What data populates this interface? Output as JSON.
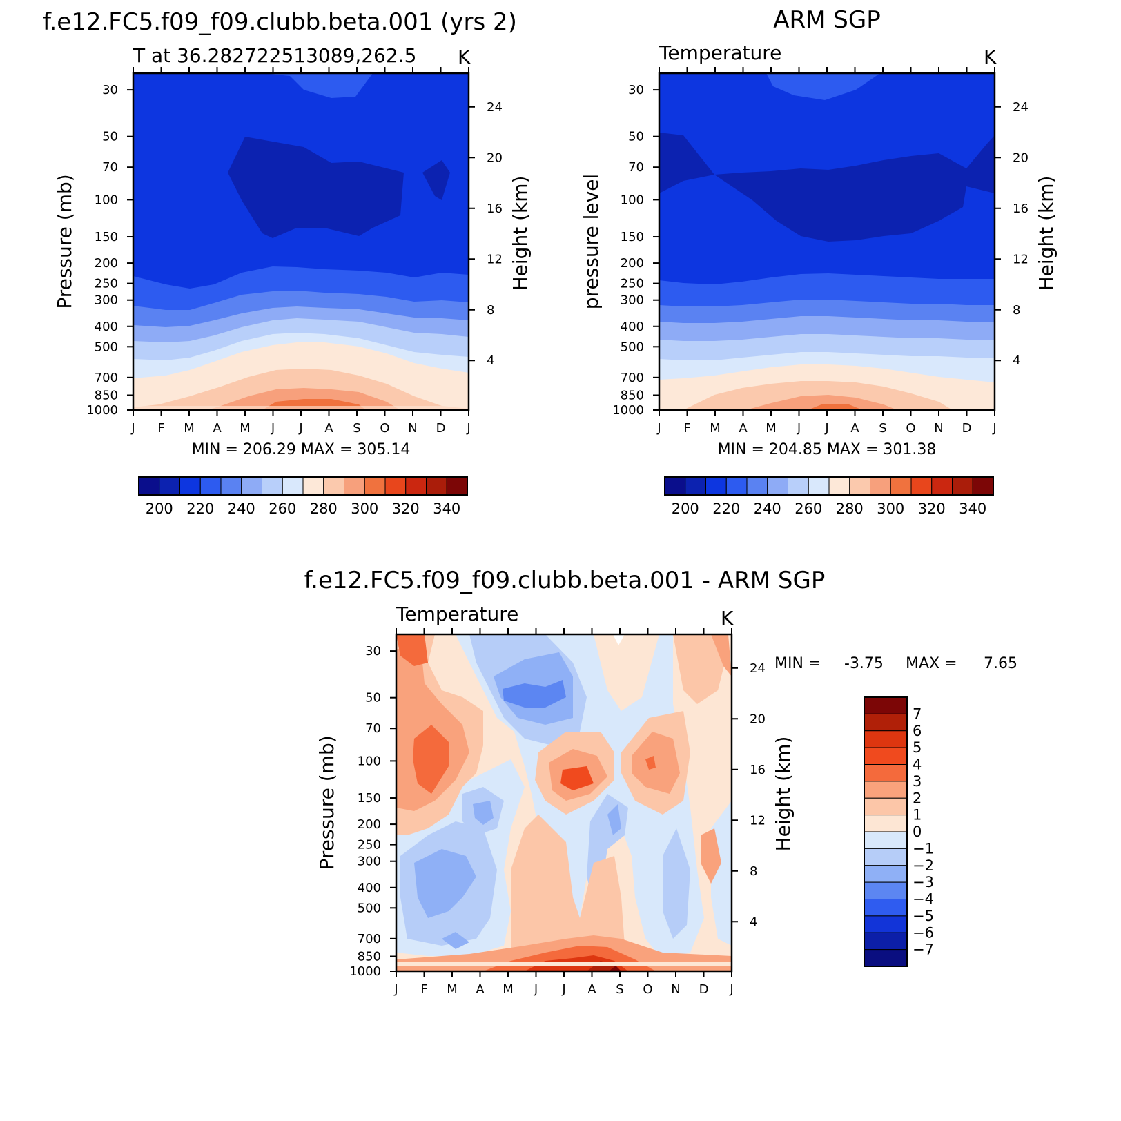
{
  "chart_data": [
    {
      "id": "model",
      "type": "contour",
      "title": "f.e12.FC5.f09_f09.clubb.beta.001 (yrs 2)",
      "left_label": "T at 36.282722513089,262.5",
      "units": "K",
      "ylabel": "Pressure (mb)",
      "right_label": "Height (km)",
      "minmax": "MIN = 206.29 MAX = 305.14",
      "months": [
        "J",
        "F",
        "M",
        "A",
        "M",
        "J",
        "J",
        "A",
        "S",
        "O",
        "N",
        "D",
        "J"
      ],
      "pressure_ticks": [
        "30",
        "50",
        "70",
        "100",
        "150",
        "200",
        "250",
        "300",
        "400",
        "500",
        "700",
        "850",
        "1000"
      ],
      "height_ticks": [
        "24",
        "20",
        "16",
        "12",
        "8",
        "4"
      ],
      "colorbar_labels": [
        "200",
        "220",
        "240",
        "260",
        "280",
        "300",
        "320",
        "340"
      ]
    },
    {
      "id": "obs",
      "type": "contour",
      "title": "ARM SGP",
      "left_label": "Temperature",
      "units": "K",
      "ylabel": "pressure level",
      "right_label": "Height (km)",
      "minmax": "MIN = 204.85 MAX = 301.38",
      "months": [
        "J",
        "F",
        "M",
        "A",
        "M",
        "J",
        "J",
        "A",
        "S",
        "O",
        "N",
        "D",
        "J"
      ],
      "pressure_ticks": [
        "30",
        "50",
        "70",
        "100",
        "150",
        "200",
        "250",
        "300",
        "400",
        "500",
        "700",
        "850",
        "1000"
      ],
      "height_ticks": [
        "24",
        "20",
        "16",
        "12",
        "8",
        "4"
      ],
      "colorbar_labels": [
        "200",
        "220",
        "240",
        "260",
        "280",
        "300",
        "320",
        "340"
      ]
    },
    {
      "id": "diff",
      "type": "contour",
      "title": "f.e12.FC5.f09_f09.clubb.beta.001 - ARM SGP",
      "left_label": "Temperature",
      "units": "K",
      "ylabel": "Pressure (mb)",
      "right_label": "Height (km)",
      "min_label": "MIN =",
      "min_value": "-3.75",
      "max_label": "MAX =",
      "max_value": "7.65",
      "months": [
        "J",
        "F",
        "M",
        "A",
        "M",
        "J",
        "J",
        "A",
        "S",
        "O",
        "N",
        "D",
        "J"
      ],
      "pressure_ticks": [
        "30",
        "50",
        "70",
        "100",
        "150",
        "200",
        "250",
        "300",
        "400",
        "500",
        "700",
        "850",
        "1000"
      ],
      "height_ticks": [
        "24",
        "20",
        "16",
        "12",
        "8",
        "4"
      ],
      "colorbar_labels": [
        "7",
        "6",
        "5",
        "4",
        "3",
        "2",
        "1",
        "0",
        "−1",
        "−2",
        "−3",
        "−4",
        "−5",
        "−6",
        "−7"
      ]
    }
  ],
  "colors": {
    "temp_scale": [
      "#0a0e8c",
      "#0c22b0",
      "#0d36e0",
      "#2d5bf0",
      "#5a82f2",
      "#8eabf6",
      "#b8cffa",
      "#d9e8fc",
      "#fde8d8",
      "#fbc9ad",
      "#f7a07c",
      "#f0723e",
      "#e8461c",
      "#cb2710",
      "#aa1d0a",
      "#7c0606"
    ],
    "diff_scale": [
      "#7c0606",
      "#b02008",
      "#dd3610",
      "#f04a1e",
      "#f46a3c",
      "#f9a27c",
      "#fcc6a8",
      "#fde6d4",
      "#d8e8fb",
      "#b6cdf8",
      "#8fb0f6",
      "#5c86f2",
      "#2f5cf0",
      "#1234d8",
      "#0c1fa8",
      "#0a0e80"
    ]
  }
}
